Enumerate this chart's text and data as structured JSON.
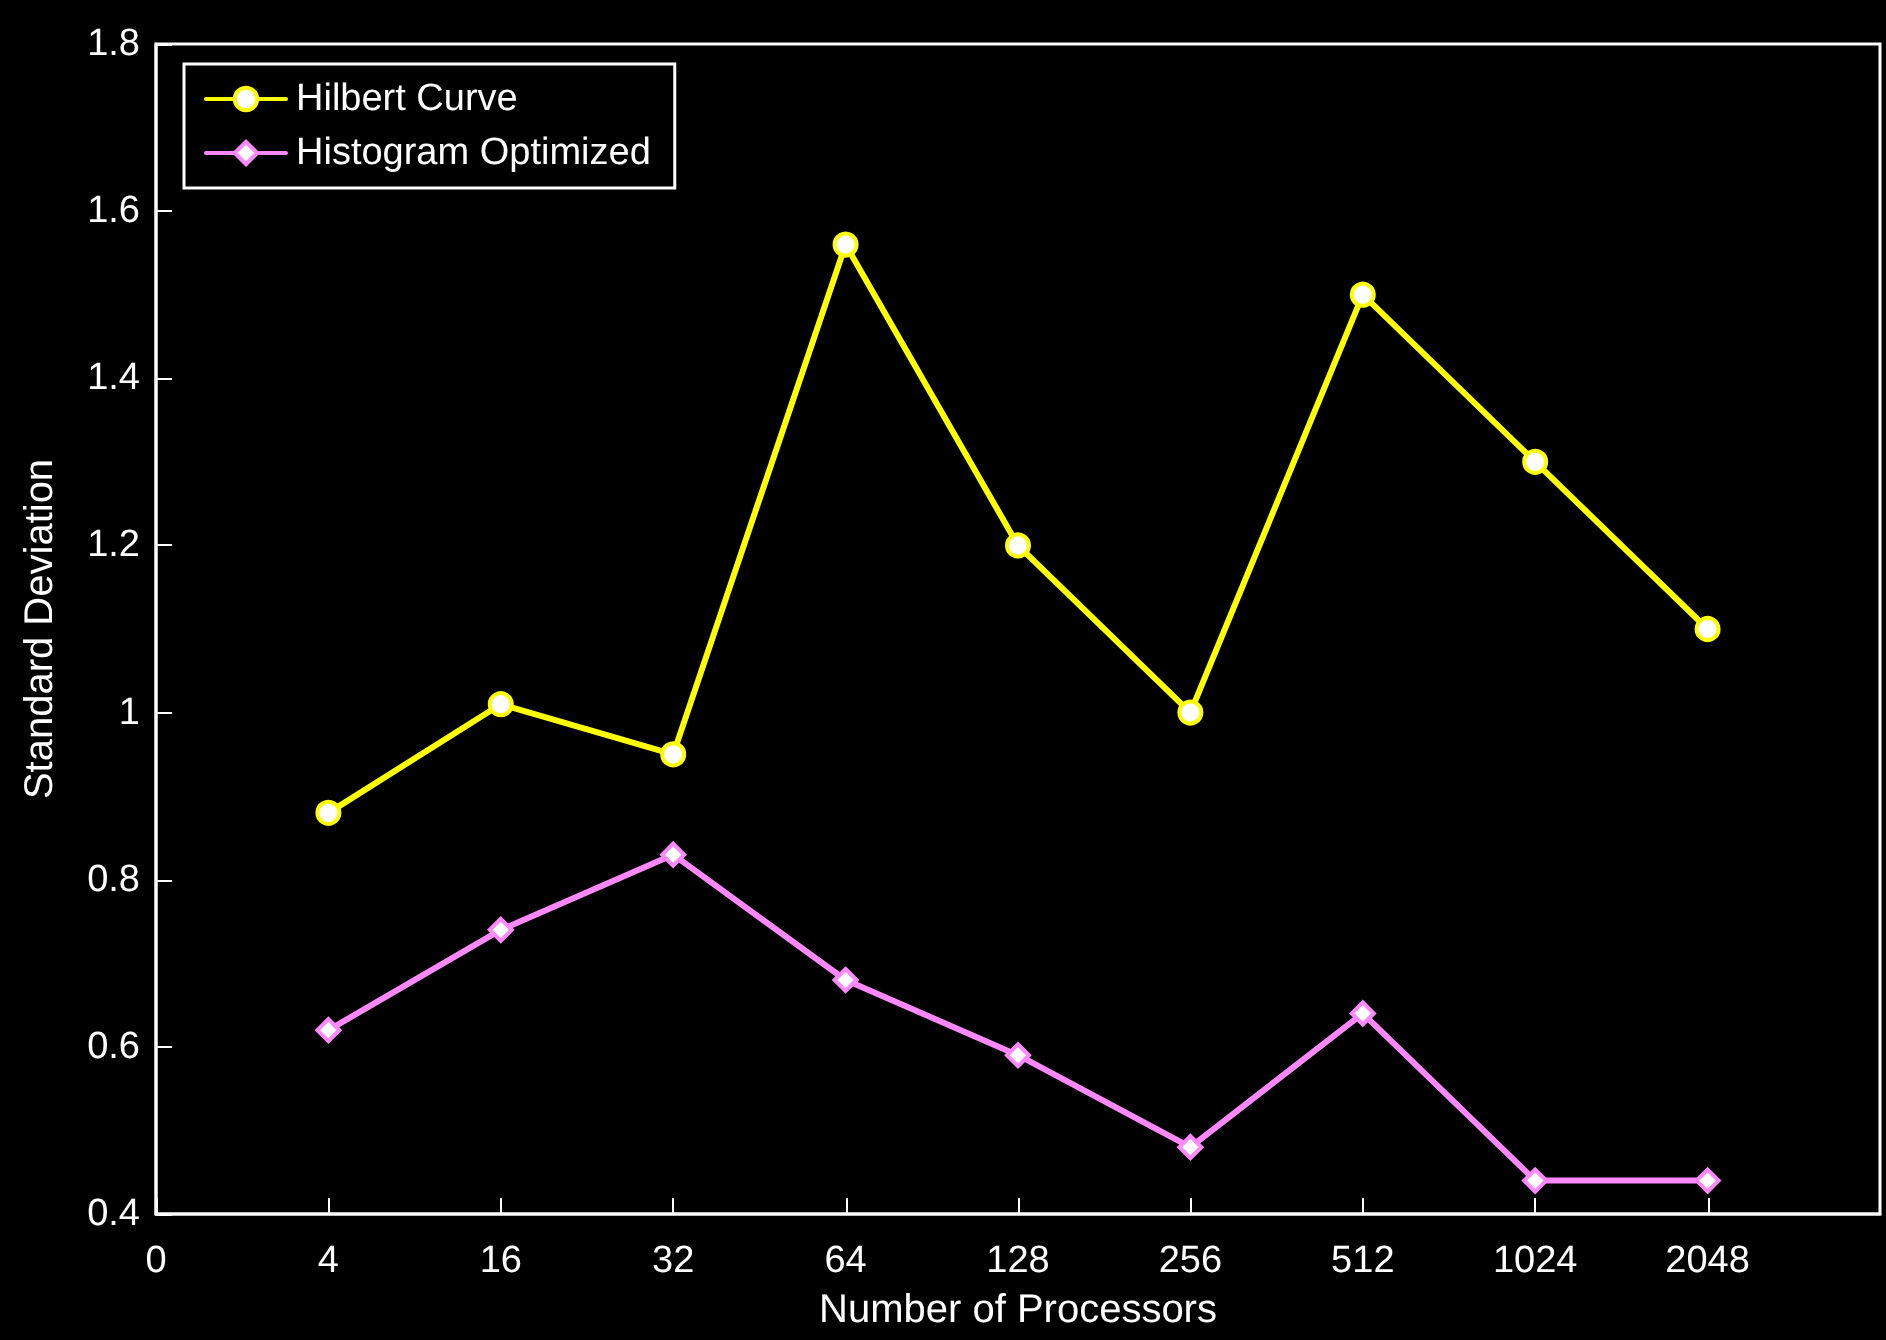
{
  "chart_data": {
    "type": "line",
    "xlabel": "Number of Processors",
    "ylabel": "Standard Deviation",
    "categories": [
      "0",
      "4",
      "16",
      "32",
      "64",
      "128",
      "256",
      "512",
      "1024",
      "2048",
      null
    ],
    "series": [
      {
        "name": "Hilbert Curve",
        "color": "#ffff00",
        "marker": "circle",
        "values": [
          null,
          0.88,
          1.01,
          0.95,
          1.56,
          1.2,
          1.0,
          1.5,
          1.3,
          1.1,
          null
        ]
      },
      {
        "name": "Histogram Optimized",
        "color": "#ff88ff",
        "marker": "diamond",
        "values": [
          null,
          0.62,
          0.74,
          0.83,
          0.68,
          0.59,
          0.48,
          0.64,
          0.44,
          0.44,
          null
        ]
      }
    ],
    "ylim": [
      0.4,
      1.8
    ],
    "yticks": [
      0.4,
      0.6,
      0.8,
      1,
      1.2,
      1.4,
      1.6,
      1.8
    ],
    "grid": false,
    "legend": "top left",
    "line_style": "solid"
  }
}
